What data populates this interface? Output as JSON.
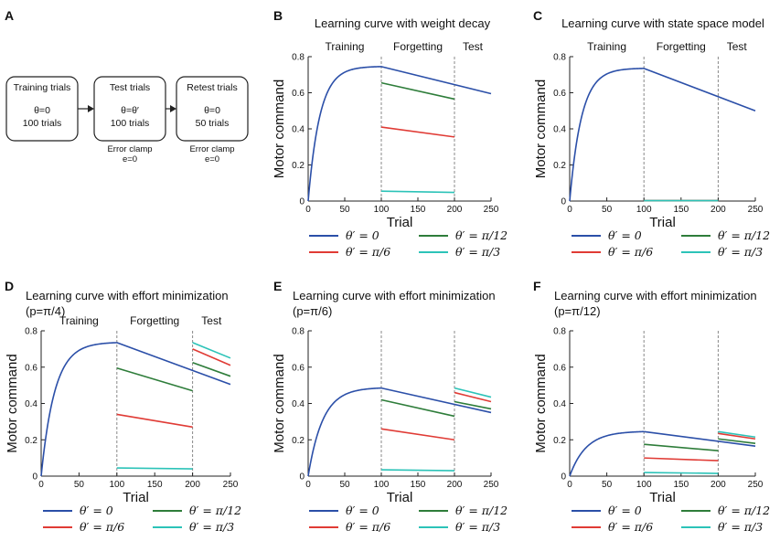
{
  "legend": {
    "entries": [
      {
        "key": "t0",
        "label": "θ′ = 0",
        "color": "#2b4fa8"
      },
      {
        "key": "t12",
        "label": "θ′ = π/12",
        "color": "#2e7d3a"
      },
      {
        "key": "t6",
        "label": "θ′ = π/6",
        "color": "#e03b35"
      },
      {
        "key": "t3",
        "label": "θ′ = π/3",
        "color": "#2cc3b8"
      }
    ]
  },
  "diagram": {
    "panel": "A",
    "boxes": [
      {
        "name": "training-box",
        "title": "Training trials",
        "line2": "θ=0",
        "line3": "100 trials",
        "below": []
      },
      {
        "name": "test-box",
        "title": "Test trials",
        "line2": "θ=θ′",
        "line3": "100 trials",
        "below": [
          "Error clamp",
          "e=0"
        ]
      },
      {
        "name": "retest-box",
        "title": "Retest trials",
        "line2": "θ=0",
        "line3": "50 trials",
        "below": [
          "Error clamp",
          "e=0"
        ]
      }
    ]
  },
  "chart_data": [
    {
      "panel": "B",
      "type": "line",
      "title": [
        "Learning curve with weight decay"
      ],
      "xlabel": "Trial",
      "ylabel": "Motor command",
      "xlim": [
        0,
        250
      ],
      "ylim": [
        0,
        0.8
      ],
      "xticks": [
        0,
        50,
        100,
        150,
        200,
        250
      ],
      "yticks": [
        0,
        0.2,
        0.4,
        0.6,
        0.8
      ],
      "phases": [
        "Training",
        "Forgetting",
        "Test"
      ],
      "phase_bounds": [
        100,
        200
      ],
      "series": [
        {
          "name": "θ′ = 0",
          "color": "#2b4fa8",
          "segments": [
            {
              "kind": "exp",
              "x0": 0,
              "x1": 100,
              "peak": 0.745,
              "tau": 16
            },
            {
              "kind": "lin",
              "x0": 100,
              "x1": 250,
              "y0": 0.745,
              "y1": 0.595
            }
          ]
        },
        {
          "name": "θ′ = π/12",
          "color": "#2e7d3a",
          "segments": [
            {
              "kind": "lin",
              "x0": 100,
              "x1": 200,
              "y0": 0.655,
              "y1": 0.565
            }
          ]
        },
        {
          "name": "θ′ = π/6",
          "color": "#e03b35",
          "segments": [
            {
              "kind": "lin",
              "x0": 100,
              "x1": 200,
              "y0": 0.41,
              "y1": 0.355
            }
          ]
        },
        {
          "name": "θ′ = π/3",
          "color": "#2cc3b8",
          "segments": [
            {
              "kind": "lin",
              "x0": 100,
              "x1": 200,
              "y0": 0.055,
              "y1": 0.048
            }
          ]
        }
      ]
    },
    {
      "panel": "C",
      "type": "line",
      "title": [
        "Learning curve with state space model"
      ],
      "xlabel": "Trial",
      "ylabel": "Motor command",
      "xlim": [
        0,
        250
      ],
      "ylim": [
        0,
        0.8
      ],
      "xticks": [
        0,
        50,
        100,
        150,
        200,
        250
      ],
      "yticks": [
        0,
        0.2,
        0.4,
        0.6,
        0.8
      ],
      "phases": [
        "Training",
        "Forgetting",
        "Test"
      ],
      "phase_bounds": [
        100,
        200
      ],
      "series": [
        {
          "name": "θ′ = 0",
          "color": "#2b4fa8",
          "segments": [
            {
              "kind": "exp",
              "x0": 0,
              "x1": 100,
              "peak": 0.735,
              "tau": 16
            },
            {
              "kind": "lin",
              "x0": 100,
              "x1": 250,
              "y0": 0.735,
              "y1": 0.5
            }
          ]
        },
        {
          "name": "θ′ = π/12",
          "color": "#2e7d3a",
          "segments": [
            {
              "kind": "lin",
              "x0": 100,
              "x1": 200,
              "y0": 0.002,
              "y1": 0.002
            }
          ]
        },
        {
          "name": "θ′ = π/6",
          "color": "#e03b35",
          "segments": [
            {
              "kind": "lin",
              "x0": 100,
              "x1": 200,
              "y0": 0.002,
              "y1": 0.002
            }
          ]
        },
        {
          "name": "θ′ = π/3",
          "color": "#2cc3b8",
          "segments": [
            {
              "kind": "lin",
              "x0": 100,
              "x1": 200,
              "y0": 0.002,
              "y1": 0.002
            }
          ]
        }
      ]
    },
    {
      "panel": "D",
      "type": "line",
      "title": [
        "Learning curve with effort minimization",
        "(p=π/4)"
      ],
      "xlabel": "Trial",
      "ylabel": "Motor command",
      "xlim": [
        0,
        250
      ],
      "ylim": [
        0,
        0.8
      ],
      "xticks": [
        0,
        50,
        100,
        150,
        200,
        250
      ],
      "yticks": [
        0,
        0.2,
        0.4,
        0.6,
        0.8
      ],
      "phases": [
        "Training",
        "Forgetting",
        "Test"
      ],
      "phase_bounds": [
        100,
        200
      ],
      "series": [
        {
          "name": "θ′ = 0",
          "color": "#2b4fa8",
          "segments": [
            {
              "kind": "exp",
              "x0": 0,
              "x1": 100,
              "peak": 0.735,
              "tau": 18
            },
            {
              "kind": "lin",
              "x0": 100,
              "x1": 250,
              "y0": 0.735,
              "y1": 0.505
            }
          ]
        },
        {
          "name": "θ′ = π/12",
          "color": "#2e7d3a",
          "segments": [
            {
              "kind": "lin",
              "x0": 100,
              "x1": 200,
              "y0": 0.595,
              "y1": 0.47
            },
            {
              "kind": "lin",
              "x0": 200,
              "x1": 250,
              "y0": 0.625,
              "y1": 0.55
            }
          ]
        },
        {
          "name": "θ′ = π/6",
          "color": "#e03b35",
          "segments": [
            {
              "kind": "lin",
              "x0": 100,
              "x1": 200,
              "y0": 0.34,
              "y1": 0.27
            },
            {
              "kind": "lin",
              "x0": 200,
              "x1": 250,
              "y0": 0.7,
              "y1": 0.61
            }
          ]
        },
        {
          "name": "θ′ = π/3",
          "color": "#2cc3b8",
          "segments": [
            {
              "kind": "lin",
              "x0": 100,
              "x1": 200,
              "y0": 0.045,
              "y1": 0.04
            },
            {
              "kind": "lin",
              "x0": 200,
              "x1": 250,
              "y0": 0.735,
              "y1": 0.65
            }
          ]
        }
      ]
    },
    {
      "panel": "E",
      "type": "line",
      "title": [
        "Learning curve with effort minimization",
        "(p=π/6)"
      ],
      "xlabel": "Trial",
      "ylabel": "Motor command",
      "xlim": [
        0,
        250
      ],
      "ylim": [
        0,
        0.8
      ],
      "xticks": [
        0,
        50,
        100,
        150,
        200,
        250
      ],
      "yticks": [
        0,
        0.2,
        0.4,
        0.6,
        0.8
      ],
      "phases": [],
      "phase_bounds": [
        100,
        200
      ],
      "series": [
        {
          "name": "θ′ = 0",
          "color": "#2b4fa8",
          "segments": [
            {
              "kind": "exp",
              "x0": 0,
              "x1": 100,
              "peak": 0.485,
              "tau": 20
            },
            {
              "kind": "lin",
              "x0": 100,
              "x1": 250,
              "y0": 0.485,
              "y1": 0.35
            }
          ]
        },
        {
          "name": "θ′ = π/12",
          "color": "#2e7d3a",
          "segments": [
            {
              "kind": "lin",
              "x0": 100,
              "x1": 200,
              "y0": 0.42,
              "y1": 0.33
            },
            {
              "kind": "lin",
              "x0": 200,
              "x1": 250,
              "y0": 0.41,
              "y1": 0.37
            }
          ]
        },
        {
          "name": "θ′ = π/6",
          "color": "#e03b35",
          "segments": [
            {
              "kind": "lin",
              "x0": 100,
              "x1": 200,
              "y0": 0.26,
              "y1": 0.2
            },
            {
              "kind": "lin",
              "x0": 200,
              "x1": 250,
              "y0": 0.46,
              "y1": 0.41
            }
          ]
        },
        {
          "name": "θ′ = π/3",
          "color": "#2cc3b8",
          "segments": [
            {
              "kind": "lin",
              "x0": 100,
              "x1": 200,
              "y0": 0.035,
              "y1": 0.03
            },
            {
              "kind": "lin",
              "x0": 200,
              "x1": 250,
              "y0": 0.485,
              "y1": 0.435
            }
          ]
        }
      ]
    },
    {
      "panel": "F",
      "type": "line",
      "title": [
        "Learning curve with effort minimization",
        "(p=π/12)"
      ],
      "xlabel": "Trial",
      "ylabel": "Motor command",
      "xlim": [
        0,
        250
      ],
      "ylim": [
        0,
        0.8
      ],
      "xticks": [
        0,
        50,
        100,
        150,
        200,
        250
      ],
      "yticks": [
        0,
        0.2,
        0.4,
        0.6,
        0.8
      ],
      "phases": [],
      "phase_bounds": [
        100,
        200
      ],
      "series": [
        {
          "name": "θ′ = 0",
          "color": "#2b4fa8",
          "segments": [
            {
              "kind": "exp",
              "x0": 0,
              "x1": 100,
              "peak": 0.245,
              "tau": 22
            },
            {
              "kind": "lin",
              "x0": 100,
              "x1": 250,
              "y0": 0.245,
              "y1": 0.165
            }
          ]
        },
        {
          "name": "θ′ = π/12",
          "color": "#2e7d3a",
          "segments": [
            {
              "kind": "lin",
              "x0": 100,
              "x1": 200,
              "y0": 0.175,
              "y1": 0.14
            },
            {
              "kind": "lin",
              "x0": 200,
              "x1": 250,
              "y0": 0.205,
              "y1": 0.18
            }
          ]
        },
        {
          "name": "θ′ = π/6",
          "color": "#e03b35",
          "segments": [
            {
              "kind": "lin",
              "x0": 100,
              "x1": 200,
              "y0": 0.1,
              "y1": 0.085
            },
            {
              "kind": "lin",
              "x0": 200,
              "x1": 250,
              "y0": 0.235,
              "y1": 0.205
            }
          ]
        },
        {
          "name": "θ′ = π/3",
          "color": "#2cc3b8",
          "segments": [
            {
              "kind": "lin",
              "x0": 100,
              "x1": 200,
              "y0": 0.02,
              "y1": 0.015
            },
            {
              "kind": "lin",
              "x0": 200,
              "x1": 250,
              "y0": 0.245,
              "y1": 0.215
            }
          ]
        }
      ]
    }
  ]
}
